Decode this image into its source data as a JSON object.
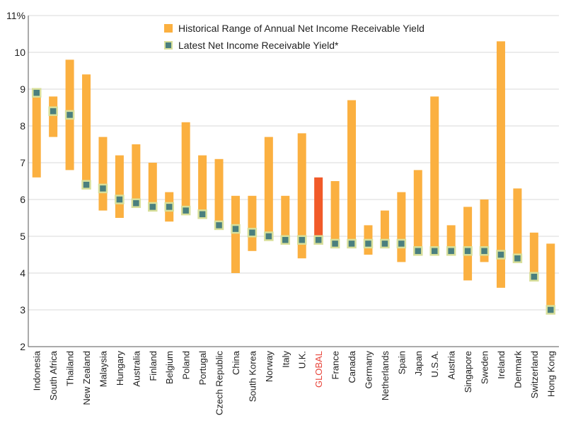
{
  "chart_data": {
    "type": "bar",
    "subtype": "floating-range-with-markers",
    "ylim": [
      2,
      11
    ],
    "y_ticks": [
      "2",
      "3",
      "4",
      "5",
      "6",
      "7",
      "8",
      "9",
      "10",
      "11%"
    ],
    "grid": true,
    "legend_position": "top-center",
    "series": [
      {
        "name": "Historical Range of Annual Net Income Receivable Yield",
        "kind": "range"
      },
      {
        "name": "Latest Net Income Receivable Yield*",
        "kind": "marker"
      }
    ],
    "categories": [
      "Indonesia",
      "South Africa",
      "Thailand",
      "New Zealand",
      "Malaysia",
      "Hungary",
      "Australia",
      "Finland",
      "Belgium",
      "Poland",
      "Portugal",
      "Czech Republic",
      "China",
      "South Korea",
      "Norway",
      "Italy",
      "U.K.",
      "GLOBAL",
      "France",
      "Canada",
      "Germany",
      "Netherlands",
      "Spain",
      "Japan",
      "U.S.A.",
      "Austria",
      "Singapore",
      "Sweden",
      "Ireland",
      "Denmark",
      "Switzerland",
      "Hong Kong"
    ],
    "low": [
      6.6,
      7.7,
      6.8,
      6.3,
      5.7,
      5.5,
      5.8,
      5.7,
      5.4,
      5.6,
      5.5,
      5.2,
      4.0,
      4.6,
      4.9,
      4.8,
      4.4,
      4.8,
      4.7,
      4.7,
      4.5,
      4.7,
      4.3,
      4.5,
      4.5,
      4.5,
      3.8,
      4.3,
      3.6,
      4.3,
      3.8,
      2.9
    ],
    "high": [
      9.0,
      8.8,
      9.8,
      9.4,
      7.7,
      7.2,
      7.5,
      7.0,
      6.2,
      8.1,
      7.2,
      7.1,
      6.1,
      6.1,
      7.7,
      6.1,
      7.8,
      6.6,
      6.5,
      8.7,
      5.3,
      5.7,
      6.2,
      6.8,
      8.8,
      5.3,
      5.8,
      6.0,
      10.3,
      6.3,
      5.1,
      4.8
    ],
    "latest": [
      8.9,
      8.4,
      8.3,
      6.4,
      6.3,
      6.0,
      5.9,
      5.8,
      5.8,
      5.7,
      5.6,
      5.3,
      5.2,
      5.1,
      5.0,
      4.9,
      4.9,
      4.9,
      4.8,
      4.8,
      4.8,
      4.8,
      4.8,
      4.6,
      4.6,
      4.6,
      4.6,
      4.6,
      4.5,
      4.4,
      3.9,
      3.0
    ],
    "highlight_category": "GLOBAL",
    "colors": {
      "range": "#fbb040",
      "highlight_range": "#f15a29",
      "highlight_label": "#e8443a",
      "marker_fill": "#4a7f7e",
      "marker_border": "#d8df9a",
      "grid": "#d9d9d9",
      "axis": "#555555",
      "text": "#222222"
    }
  }
}
